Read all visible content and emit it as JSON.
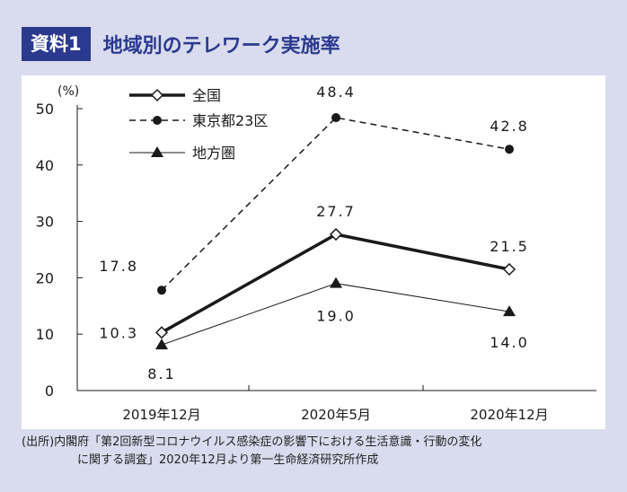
{
  "header": {
    "badge": "資料1",
    "title": "地域別のテレワーク実施率"
  },
  "source": {
    "line1": "(出所)内閣府「第2回新型コロナウイルス感染症の影響下における生活意識・行動の変化",
    "line2": "に関する調査」2020年12月より第一生命経済研究所作成"
  },
  "chart_data": {
    "type": "line",
    "yunit": "(%)",
    "ylim": [
      0,
      50
    ],
    "yticks": [
      0,
      10,
      20,
      30,
      40,
      50
    ],
    "categories": [
      "2019年12月",
      "2020年5月",
      "2020年12月"
    ],
    "legend_placement": "top-left",
    "grid": false,
    "series": [
      {
        "name": "全国",
        "values": [
          10.3,
          27.7,
          21.5
        ],
        "labels": [
          "10.3",
          "27.7",
          "21.5"
        ],
        "style": "solid-thick",
        "marker": "diamond-open",
        "color": "#1a1a1a"
      },
      {
        "name": "東京都23区",
        "values": [
          17.8,
          48.4,
          42.8
        ],
        "labels": [
          "17.8",
          "48.4",
          "42.8"
        ],
        "style": "dashed",
        "marker": "circle-filled",
        "color": "#1a1a1a"
      },
      {
        "name": "地方圏",
        "values": [
          8.1,
          19.0,
          14.0
        ],
        "labels": [
          "8.1",
          "19.0",
          "14.0"
        ],
        "style": "solid-thin",
        "marker": "triangle-filled",
        "color": "#1a1a1a"
      }
    ]
  },
  "colors": {
    "page_background": "#d9dcee",
    "accent": "#2b3a8f",
    "panel": "#ffffff"
  }
}
